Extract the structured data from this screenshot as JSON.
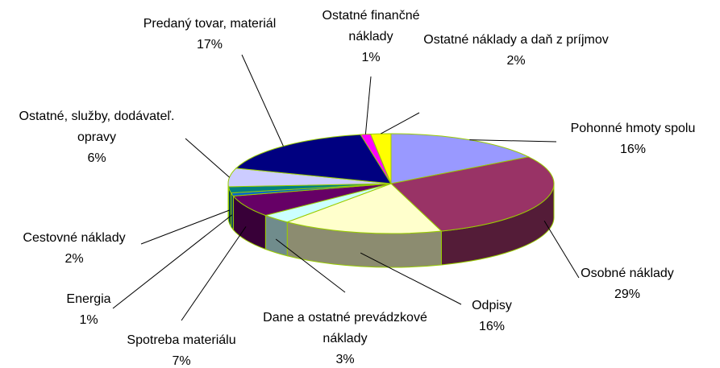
{
  "chart_data": {
    "type": "pie",
    "categories": [
      "Pohonné hmoty spolu",
      "Osobné náklady",
      "Odpisy",
      "Dane a ostatné prevádzkové náklady",
      "Spotreba materiálu",
      "Energia",
      "Cestovné náklady",
      "Ostatné, služby, dodávateľ. opravy",
      "Predaný tovar, materiál",
      "Ostatné finančné náklady",
      "Ostatné náklady a daň z príjmov"
    ],
    "values": [
      16,
      29,
      16,
      3,
      7,
      1,
      2,
      6,
      17,
      1,
      2
    ],
    "value_labels": [
      "16%",
      "29%",
      "16%",
      "3%",
      "7%",
      "1%",
      "2%",
      "6%",
      "17%",
      "1%",
      "2%"
    ],
    "colors": [
      "#9999ff",
      "#993366",
      "#ffffcc",
      "#ccffff",
      "#660066",
      "#0066cc",
      "#008080",
      "#ccccff",
      "#000080",
      "#ff00ff",
      "#ffff00"
    ]
  }
}
